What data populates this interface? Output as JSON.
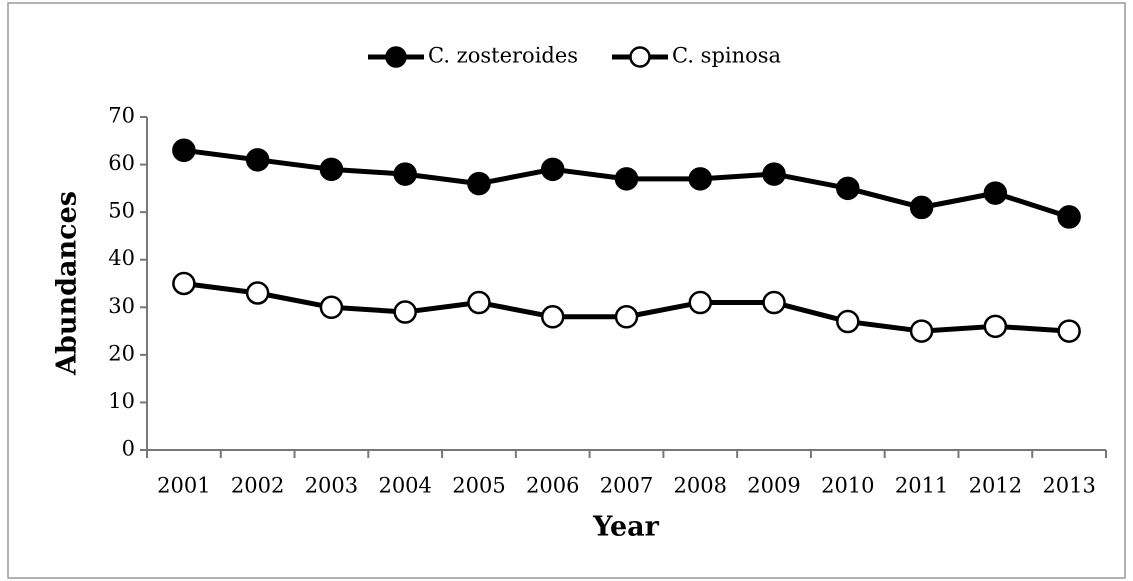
{
  "chart_data": {
    "type": "line",
    "categories": [
      "2001",
      "2002",
      "2003",
      "2004",
      "2005",
      "2006",
      "2007",
      "2008",
      "2009",
      "2010",
      "2011",
      "2012",
      "2013"
    ],
    "series": [
      {
        "name": "C. zosteroides",
        "color": "#000000",
        "marker_fill": "#000000",
        "values": [
          63,
          61,
          59,
          58,
          56,
          59,
          57,
          57,
          58,
          55,
          51,
          54,
          49
        ]
      },
      {
        "name": "C. spinosa",
        "color": "#000000",
        "marker_fill": "#ffffff",
        "values": [
          35,
          33,
          30,
          29,
          31,
          28,
          28,
          31,
          31,
          27,
          25,
          26,
          25
        ]
      }
    ],
    "x_label": "Year",
    "y_label": "Abundances",
    "ylim": [
      0,
      70
    ],
    "yticks": [
      0,
      10,
      20,
      30,
      40,
      50,
      60,
      70
    ],
    "grid": false,
    "legend": "top"
  }
}
